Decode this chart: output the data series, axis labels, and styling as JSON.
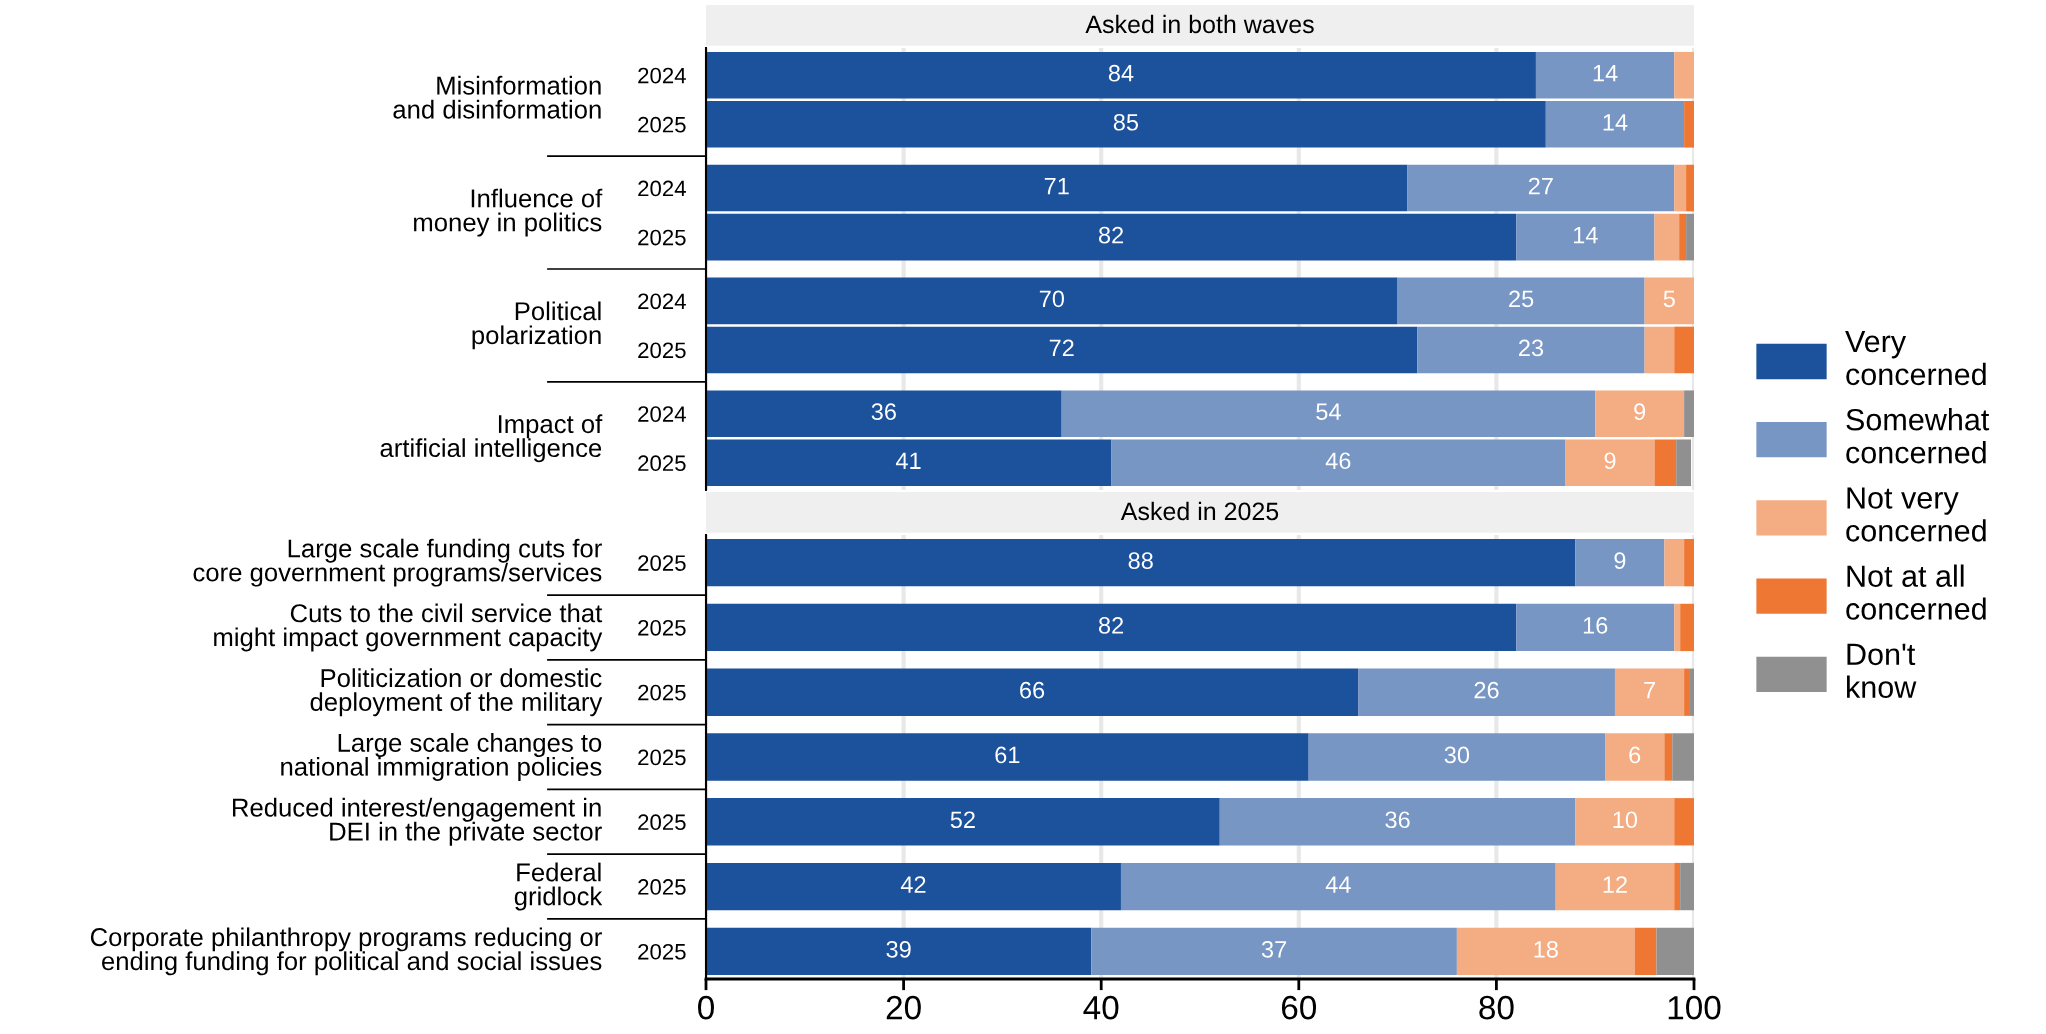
{
  "chart_data": [
    {
      "type": "bar",
      "orientation": "horizontal",
      "stacked": true,
      "title": "Asked in both waves",
      "categories": [
        "2024",
        "2025",
        "2024",
        "2025",
        "2024",
        "2025",
        "2024",
        "2025"
      ],
      "annotations": [
        "Misinformation\nand disinformation",
        "Influence of\nmoney in politics",
        "Political\npolarization",
        "Impact of\nartificial intelligence"
      ],
      "series": [
        {
          "name": "Very\nconcerned",
          "color": "#1c519c",
          "values": [
            84,
            85,
            71,
            82,
            70,
            72,
            36,
            41
          ],
          "value_labels": [
            "84",
            "85",
            "71",
            "82",
            "70",
            "72",
            "36",
            "41"
          ]
        },
        {
          "name": "Somewhat\nconcerned",
          "color": "#7896c4",
          "values": [
            14,
            14,
            27,
            14,
            25,
            23,
            54,
            46
          ],
          "value_labels": [
            "14",
            "14",
            "27",
            "14",
            "25",
            "23",
            "54",
            "46"
          ]
        },
        {
          "name": "Not very\nconcerned",
          "color": "#f4ac83",
          "values": [
            2,
            0,
            1.2,
            2.5,
            5,
            3,
            9,
            9
          ],
          "value_labels": [
            null,
            null,
            null,
            null,
            "5",
            null,
            "9",
            "9"
          ]
        },
        {
          "name": "Not at all\nconcerned",
          "color": "#ee7733",
          "values": [
            0,
            1,
            0.8,
            0.7,
            0,
            2,
            0,
            2.2
          ]
        },
        {
          "name": "Don't\nknow",
          "color": "#909090",
          "values": [
            0,
            0,
            0,
            0.8,
            0,
            0,
            1,
            1.5
          ]
        }
      ],
      "xlim": [
        0,
        100
      ],
      "xticks": [
        0,
        20,
        40,
        60,
        80,
        100
      ],
      "grid": "x",
      "tick_labels": "y",
      "legend": "right"
    },
    {
      "type": "bar",
      "orientation": "horizontal",
      "stacked": true,
      "title": "Asked in 2025",
      "categories": [
        "2025",
        "2025",
        "2025",
        "2025",
        "2025",
        "2025",
        "2025"
      ],
      "annotations": [
        "Large scale funding cuts for\ncore government programs/services",
        "Cuts to the civil service that\nmight impact government capacity",
        "Politicization or domestic\ndeployment of the military",
        "Large scale changes to\nnational immigration policies",
        "Reduced interest/engagement in\nDEI in the private sector",
        "Federal\ngridlock",
        "Corporate philanthropy programs reducing or\nending funding for political and social issues"
      ],
      "series": [
        {
          "color": "#1c519c",
          "values": [
            88,
            82,
            66,
            61,
            52,
            42,
            39
          ],
          "value_labels": [
            "88",
            "82",
            "66",
            "61",
            "52",
            "42",
            "39"
          ]
        },
        {
          "color": "#7896c4",
          "values": [
            9,
            16,
            26,
            30,
            36,
            44,
            37
          ],
          "value_labels": [
            "9",
            "16",
            "26",
            "30",
            "36",
            "44",
            "37"
          ]
        },
        {
          "color": "#f4ac83",
          "values": [
            2,
            0.6,
            7,
            6,
            10,
            12,
            18
          ],
          "value_labels": [
            null,
            null,
            "7",
            "6",
            "10",
            "12",
            "18"
          ]
        },
        {
          "color": "#ee7733",
          "values": [
            1,
            1.4,
            0.5,
            0.8,
            2,
            0.6,
            2.2
          ]
        },
        {
          "color": "#909090",
          "values": [
            0,
            0,
            0.5,
            2.2,
            0,
            1.4,
            3.8
          ]
        }
      ],
      "xlim": [
        0,
        100
      ],
      "xticks": [
        0,
        20,
        40,
        60,
        80,
        100
      ],
      "grid": "x"
    }
  ]
}
